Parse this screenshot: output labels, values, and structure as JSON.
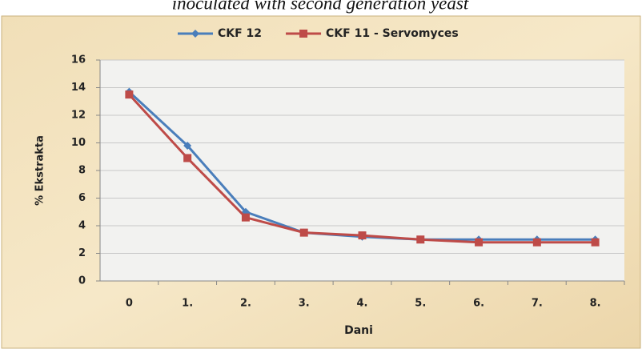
{
  "chart_data": {
    "type": "line",
    "title": "inoculated with second generation yeast",
    "categories": [
      "0",
      "1.",
      "2.",
      "3.",
      "4.",
      "5.",
      "6.",
      "7.",
      "8."
    ],
    "series": [
      {
        "name": "CKF 12",
        "color": "#4a7ebb",
        "marker": "diamond",
        "values": [
          13.7,
          9.8,
          5.0,
          3.5,
          3.2,
          3.0,
          3.0,
          3.0,
          3.0
        ]
      },
      {
        "name": "CKF 11 - Servomyces",
        "color": "#be4b48",
        "marker": "square",
        "values": [
          13.5,
          8.9,
          4.6,
          3.5,
          3.3,
          3.0,
          2.8,
          2.8,
          2.8
        ]
      }
    ],
    "ylim": [
      0,
      16
    ],
    "yticks": [
      0,
      2,
      4,
      6,
      8,
      10,
      12,
      14,
      16
    ],
    "grid": true,
    "legend": "top",
    "xlabel": "Dani",
    "ylabel": "% Ekstrakta"
  }
}
